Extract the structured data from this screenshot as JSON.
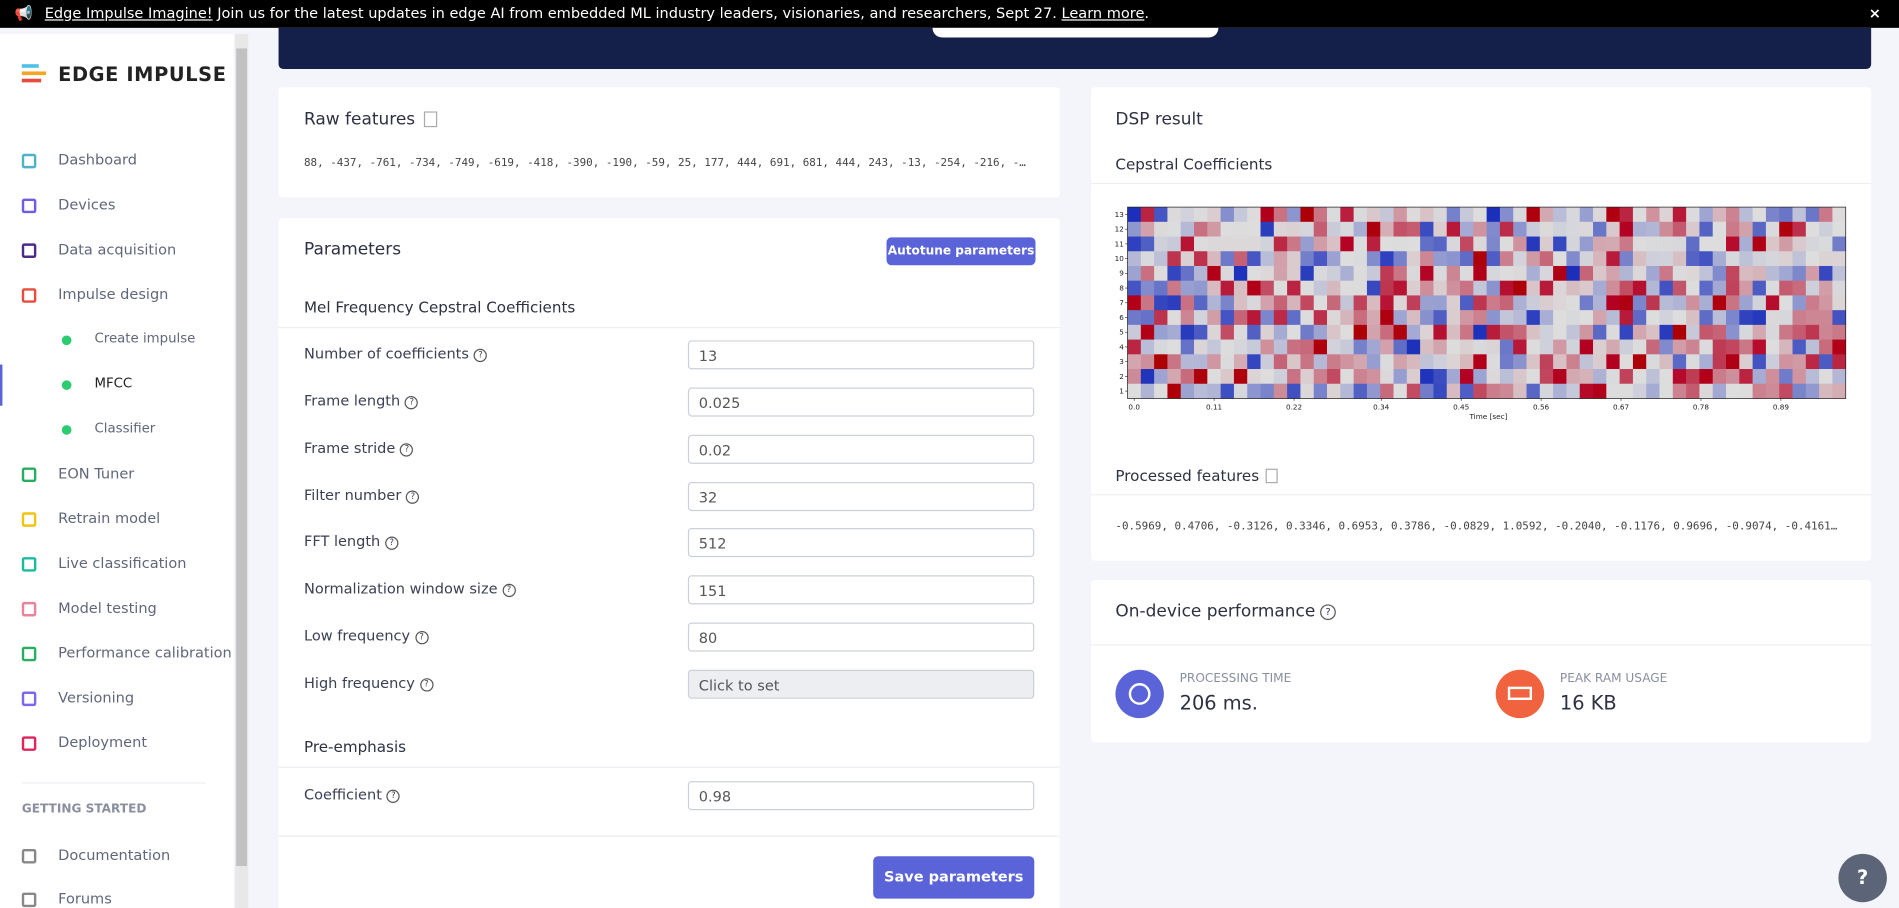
{
  "banner": {
    "link": "Edge Impulse Imagine!",
    "text": " Join us for the latest updates in edge AI from embedded ML industry leaders, visionaries, and researchers, Sept 27. ",
    "learn": "Learn more",
    "tail": ".",
    "close": "×"
  },
  "sidebar": {
    "logo": "EDGE IMPULSE",
    "nav": [
      "Dashboard",
      "Devices",
      "Data acquisition",
      "Impulse design",
      "Create impulse",
      "MFCC",
      "Classifier",
      "EON Tuner",
      "Retrain model",
      "Live classification",
      "Model testing",
      "Performance calibration",
      "Versioning",
      "Deployment"
    ],
    "section": "GETTING STARTED",
    "docs": [
      "Documentation",
      "Forums"
    ]
  },
  "raw_features": {
    "title": "Raw features",
    "values": "88, -437, -761, -734, -749, -619, -418, -390, -190, -59, 25, 177, 444, 691, 681, 444, 243, -13, -254, -216, -…"
  },
  "parameters": {
    "title": "Parameters",
    "autotune": "Autotune parameters",
    "section": "Mel Frequency Cepstral Coefficients",
    "fields": [
      {
        "label": "Number of coefficients",
        "value": "13"
      },
      {
        "label": "Frame length",
        "value": "0.025"
      },
      {
        "label": "Frame stride",
        "value": "0.02"
      },
      {
        "label": "Filter number",
        "value": "32"
      },
      {
        "label": "FFT length",
        "value": "512"
      },
      {
        "label": "Normalization window size",
        "value": "151"
      },
      {
        "label": "Low frequency",
        "value": "80"
      },
      {
        "label": "High frequency",
        "value": "Click to set"
      }
    ],
    "pre_section": "Pre-emphasis",
    "pre_fields": [
      {
        "label": "Coefficient",
        "value": "0.98"
      }
    ],
    "save": "Save parameters"
  },
  "dsp": {
    "title": "DSP result",
    "chart_title": "Cepstral Coefficients",
    "chart": {
      "type": "heatmap",
      "xlabel": "Time [sec]",
      "xticks": [
        {
          "value": 0,
          "label": "0.0"
        },
        0.11,
        0.22,
        0.34,
        0.45,
        0.56,
        0.67,
        0.78,
        0.89
      ],
      "yticks": [
        1,
        2,
        3,
        4,
        5,
        6,
        7,
        8,
        9,
        10,
        11,
        12,
        13
      ]
    },
    "processed_title": "Processed features",
    "processed": "-0.5969, 0.4706, -0.3126, 0.3346, 0.6953, 0.3786, -0.0829, 1.0592, -0.2040, -0.1176, 0.9696, -0.9074, -0.4161…"
  },
  "performance": {
    "title": "On-device performance",
    "metrics": [
      {
        "label": "PROCESSING TIME",
        "value": "206 ms."
      },
      {
        "label": "PEAK RAM USAGE",
        "value": "16 KB"
      }
    ]
  }
}
